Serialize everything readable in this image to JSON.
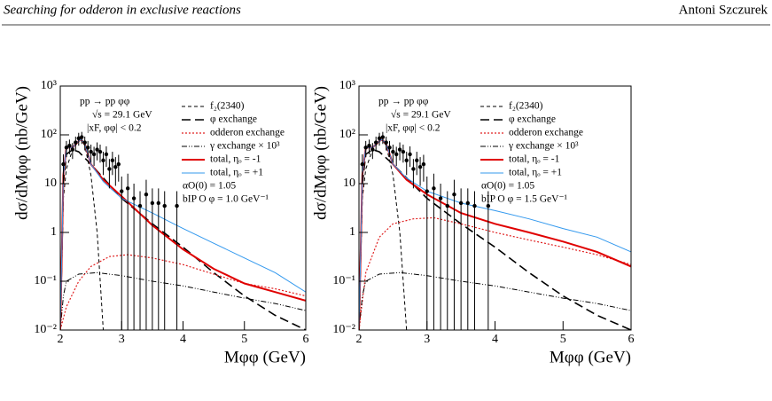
{
  "header": {
    "title": "Searching for odderon in exclusive reactions",
    "author": "Antoni Szczurek"
  },
  "chart_data": [
    {
      "type": "line",
      "log_y": true,
      "xlim": [
        2,
        6
      ],
      "ylim": [
        0.01,
        1000
      ],
      "xticks": [
        2,
        3,
        4,
        5,
        6
      ],
      "yticks": [
        {
          "value": 0.01,
          "label": "10⁻²"
        },
        {
          "value": 0.1,
          "label": "10⁻¹"
        },
        1,
        10,
        {
          "value": 100,
          "label": "10²"
        },
        {
          "value": 1000,
          "label": "10³"
        }
      ],
      "x_label": "Mφφ (GeV)",
      "y_label": "dσ/dMφφ (nb/GeV)",
      "annotations": [
        "pp → pp φφ",
        "√s = 29.1 GeV",
        "|xF, φφ| < 0.2",
        "αO(0) = 1.05",
        "bIP O φ = 1.0 GeV⁻¹"
      ],
      "series": [
        {
          "name": "f₂(2340)",
          "color": "#000000",
          "style": "dashed",
          "width": 1,
          "x": [
            2.0,
            2.05,
            2.1,
            2.2,
            2.3,
            2.34,
            2.4,
            2.5,
            2.6,
            2.7
          ],
          "values": [
            0.01,
            5,
            20,
            50,
            75,
            80,
            60,
            15,
            1,
            0.01
          ]
        },
        {
          "name": "φ exchange",
          "color": "#000000",
          "style": "longdash",
          "width": 1.6,
          "x": [
            2.0,
            2.05,
            2.1,
            2.2,
            2.3,
            2.5,
            3,
            3.5,
            4,
            4.5,
            5,
            5.5,
            6
          ],
          "values": [
            0.01,
            10,
            40,
            50,
            45,
            25,
            5,
            1.5,
            0.5,
            0.15,
            0.05,
            0.02,
            0.01
          ]
        },
        {
          "name": "odderon exchange",
          "color": "#e02020",
          "style": "dotted",
          "width": 1.2,
          "x": [
            2.0,
            2.1,
            2.3,
            2.5,
            2.8,
            3.1,
            3.5,
            4,
            4.5,
            5,
            5.5,
            6
          ],
          "values": [
            0.01,
            0.03,
            0.1,
            0.2,
            0.32,
            0.35,
            0.3,
            0.22,
            0.14,
            0.09,
            0.07,
            0.05
          ]
        },
        {
          "name": "γ exchange × 10³",
          "color": "#000000",
          "style": "dashdot",
          "width": 1,
          "x": [
            2.0,
            2.05,
            2.1,
            2.3,
            2.6,
            3,
            3.5,
            4,
            4.5,
            5,
            5.5,
            6
          ],
          "values": [
            0.01,
            0.05,
            0.1,
            0.14,
            0.15,
            0.13,
            0.1,
            0.08,
            0.06,
            0.045,
            0.035,
            0.025
          ]
        },
        {
          "name": "total, ηₒ = -1",
          "color": "#e00000",
          "style": "solid",
          "width": 2,
          "x": [
            2.0,
            2.05,
            2.1,
            2.2,
            2.3,
            2.34,
            2.4,
            2.5,
            2.7,
            3,
            3.5,
            4,
            4.5,
            5,
            5.5,
            6
          ],
          "values": [
            0.01,
            15,
            55,
            55,
            75,
            80,
            65,
            25,
            12,
            5.5,
            1.4,
            0.45,
            0.18,
            0.09,
            0.06,
            0.04
          ]
        },
        {
          "name": "total, ηₒ = +1",
          "color": "#3399ee",
          "style": "solid",
          "width": 1,
          "x": [
            2.0,
            2.05,
            2.1,
            2.2,
            2.3,
            2.34,
            2.4,
            2.5,
            2.7,
            3,
            3.5,
            4,
            4.5,
            5,
            5.5,
            6
          ],
          "values": [
            0.01,
            15,
            55,
            55,
            75,
            80,
            65,
            25,
            11,
            5,
            2.5,
            1.2,
            0.6,
            0.3,
            0.15,
            0.06
          ]
        }
      ],
      "points": {
        "color": "#000000",
        "x": [
          2.05,
          2.1,
          2.15,
          2.2,
          2.25,
          2.3,
          2.35,
          2.4,
          2.45,
          2.5,
          2.55,
          2.6,
          2.65,
          2.7,
          2.75,
          2.8,
          2.85,
          2.9,
          2.95,
          3.0,
          3.1,
          3.2,
          3.3,
          3.4,
          3.5,
          3.6,
          3.7,
          3.9
        ],
        "values": [
          25,
          55,
          60,
          50,
          70,
          85,
          90,
          70,
          55,
          45,
          40,
          50,
          45,
          30,
          40,
          20,
          30,
          22,
          25,
          7,
          8,
          5,
          3.5,
          6,
          4,
          4,
          3.5,
          3.5
        ],
        "errors": [
          15,
          20,
          20,
          18,
          22,
          25,
          25,
          22,
          20,
          18,
          17,
          20,
          18,
          15,
          18,
          12,
          15,
          13,
          14,
          7,
          8,
          5,
          3.5,
          6,
          4,
          4,
          3.5,
          3.5
        ]
      }
    },
    {
      "type": "line",
      "log_y": true,
      "xlim": [
        2,
        6
      ],
      "ylim": [
        0.01,
        1000
      ],
      "xticks": [
        2,
        3,
        4,
        5,
        6
      ],
      "yticks": [
        {
          "value": 0.01,
          "label": "10⁻²"
        },
        {
          "value": 0.1,
          "label": "10⁻¹"
        },
        1,
        10,
        {
          "value": 100,
          "label": "10²"
        },
        {
          "value": 1000,
          "label": "10³"
        }
      ],
      "x_label": "Mφφ (GeV)",
      "y_label": "dσ/dMφφ (nb/GeV)",
      "annotations": [
        "pp → pp φφ",
        "√s = 29.1 GeV",
        "|xF, φφ| < 0.2",
        "αO(0) = 1.05",
        "bIP O φ = 1.5 GeV⁻¹"
      ],
      "series": [
        {
          "name": "f₂(2340)",
          "color": "#000000",
          "style": "dashed",
          "width": 1,
          "x": [
            2.0,
            2.05,
            2.1,
            2.2,
            2.3,
            2.34,
            2.4,
            2.5,
            2.6,
            2.7
          ],
          "values": [
            0.01,
            5,
            20,
            50,
            75,
            80,
            60,
            15,
            1,
            0.01
          ]
        },
        {
          "name": "φ exchange",
          "color": "#000000",
          "style": "longdash",
          "width": 1.6,
          "x": [
            2.0,
            2.05,
            2.1,
            2.2,
            2.3,
            2.5,
            3,
            3.5,
            4,
            4.5,
            5,
            5.5,
            6
          ],
          "values": [
            0.01,
            10,
            40,
            50,
            45,
            25,
            5,
            1.5,
            0.5,
            0.15,
            0.05,
            0.02,
            0.01
          ]
        },
        {
          "name": "odderon exchange",
          "color": "#e02020",
          "style": "dotted",
          "width": 1.2,
          "x": [
            2.0,
            2.1,
            2.3,
            2.5,
            2.8,
            3.1,
            3.5,
            4,
            4.5,
            5,
            5.5,
            6
          ],
          "values": [
            0.01,
            0.15,
            0.8,
            1.5,
            1.9,
            2,
            1.5,
            1.0,
            0.7,
            0.5,
            0.35,
            0.22
          ]
        },
        {
          "name": "γ exchange × 10³",
          "color": "#000000",
          "style": "dashdot",
          "width": 1,
          "x": [
            2.0,
            2.05,
            2.1,
            2.3,
            2.6,
            3,
            3.5,
            4,
            4.5,
            5,
            5.5,
            6
          ],
          "values": [
            0.01,
            0.05,
            0.1,
            0.14,
            0.15,
            0.13,
            0.1,
            0.08,
            0.06,
            0.045,
            0.035,
            0.025
          ]
        },
        {
          "name": "total, ηₒ = -1",
          "color": "#e00000",
          "style": "solid",
          "width": 2,
          "x": [
            2.0,
            2.05,
            2.1,
            2.2,
            2.3,
            2.34,
            2.4,
            2.5,
            2.7,
            3,
            3.5,
            4,
            4.5,
            5,
            5.5,
            6
          ],
          "values": [
            0.01,
            15,
            55,
            55,
            75,
            80,
            65,
            25,
            12,
            6,
            2.5,
            1.5,
            1,
            0.65,
            0.4,
            0.2
          ]
        },
        {
          "name": "total, ηₒ = +1",
          "color": "#3399ee",
          "style": "solid",
          "width": 1,
          "x": [
            2.0,
            2.05,
            2.1,
            2.2,
            2.3,
            2.34,
            2.4,
            2.5,
            2.7,
            3,
            3.5,
            4,
            4.5,
            5,
            5.5,
            6
          ],
          "values": [
            0.01,
            15,
            55,
            55,
            75,
            80,
            65,
            25,
            13,
            7,
            4,
            2.8,
            1.9,
            1.2,
            0.8,
            0.4
          ]
        }
      ],
      "points": {
        "color": "#000000",
        "x": [
          2.05,
          2.1,
          2.15,
          2.2,
          2.25,
          2.3,
          2.35,
          2.4,
          2.45,
          2.5,
          2.55,
          2.6,
          2.65,
          2.7,
          2.75,
          2.8,
          2.85,
          2.9,
          2.95,
          3.0,
          3.1,
          3.2,
          3.3,
          3.4,
          3.5,
          3.6,
          3.7,
          3.9
        ],
        "values": [
          25,
          55,
          60,
          50,
          70,
          85,
          90,
          70,
          55,
          45,
          40,
          50,
          45,
          30,
          40,
          20,
          30,
          22,
          25,
          7,
          8,
          5,
          3.5,
          6,
          4,
          4,
          3.5,
          3.5
        ],
        "errors": [
          15,
          20,
          20,
          18,
          22,
          25,
          25,
          22,
          20,
          18,
          17,
          20,
          18,
          15,
          18,
          12,
          15,
          13,
          14,
          7,
          8,
          5,
          3.5,
          6,
          4,
          4,
          3.5,
          3.5
        ]
      }
    }
  ]
}
